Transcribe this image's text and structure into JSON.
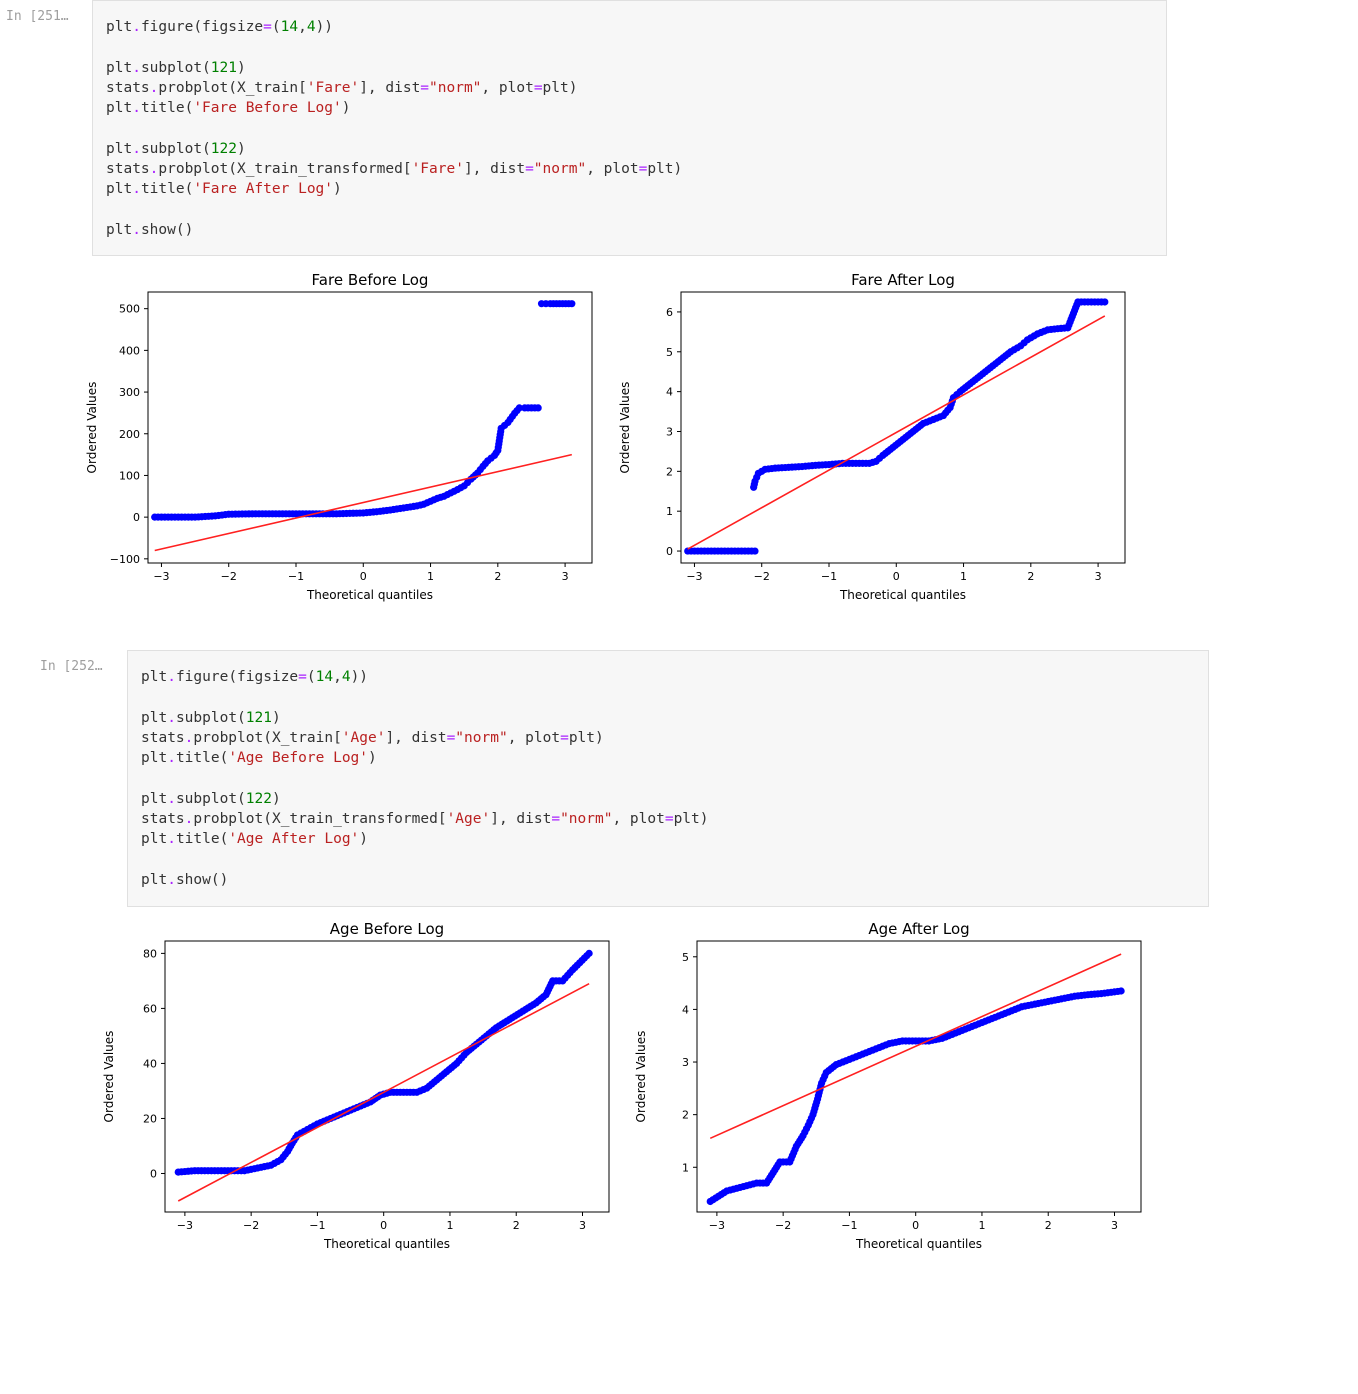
{
  "cells": [
    {
      "prompt": "In [251…",
      "code_lines": [
        [
          [
            "plt",
            "n"
          ],
          [
            ".",
            "o"
          ],
          [
            "figure(figsize",
            "n"
          ],
          [
            "=",
            "o"
          ],
          [
            "(",
            "n"
          ],
          [
            "14",
            "num"
          ],
          [
            ",",
            "n"
          ],
          [
            "4",
            "num"
          ],
          [
            "))",
            "n"
          ]
        ],
        [],
        [
          [
            "plt",
            "n"
          ],
          [
            ".",
            "o"
          ],
          [
            "subplot(",
            "n"
          ],
          [
            "121",
            "num"
          ],
          [
            ")",
            "n"
          ]
        ],
        [
          [
            "stats",
            "n"
          ],
          [
            ".",
            "o"
          ],
          [
            "probplot(X_train[",
            "n"
          ],
          [
            "'Fare'",
            "str"
          ],
          [
            "], dist",
            "n"
          ],
          [
            "=",
            "o"
          ],
          [
            "\"norm\"",
            "str"
          ],
          [
            ", plot",
            "n"
          ],
          [
            "=",
            "o"
          ],
          [
            "plt)",
            "n"
          ]
        ],
        [
          [
            "plt",
            "n"
          ],
          [
            ".",
            "o"
          ],
          [
            "title(",
            "n"
          ],
          [
            "'Fare Before Log'",
            "str"
          ],
          [
            ")",
            "n"
          ]
        ],
        [],
        [
          [
            "plt",
            "n"
          ],
          [
            ".",
            "o"
          ],
          [
            "subplot(",
            "n"
          ],
          [
            "122",
            "num"
          ],
          [
            ")",
            "n"
          ]
        ],
        [
          [
            "stats",
            "n"
          ],
          [
            ".",
            "o"
          ],
          [
            "probplot(X_train_transformed[",
            "n"
          ],
          [
            "'Fare'",
            "str"
          ],
          [
            "], dist",
            "n"
          ],
          [
            "=",
            "o"
          ],
          [
            "\"norm\"",
            "str"
          ],
          [
            ", plot",
            "n"
          ],
          [
            "=",
            "o"
          ],
          [
            "plt)",
            "n"
          ]
        ],
        [
          [
            "plt",
            "n"
          ],
          [
            ".",
            "o"
          ],
          [
            "title(",
            "n"
          ],
          [
            "'Fare After Log'",
            "str"
          ],
          [
            ")",
            "n"
          ]
        ],
        [],
        [
          [
            "plt",
            "n"
          ],
          [
            ".",
            "o"
          ],
          [
            "show()",
            "n"
          ]
        ]
      ]
    },
    {
      "prompt": "In [252…",
      "code_lines": [
        [
          [
            "plt",
            "n"
          ],
          [
            ".",
            "o"
          ],
          [
            "figure(figsize",
            "n"
          ],
          [
            "=",
            "o"
          ],
          [
            "(",
            "n"
          ],
          [
            "14",
            "num"
          ],
          [
            ",",
            "n"
          ],
          [
            "4",
            "num"
          ],
          [
            "))",
            "n"
          ]
        ],
        [],
        [
          [
            "plt",
            "n"
          ],
          [
            ".",
            "o"
          ],
          [
            "subplot(",
            "n"
          ],
          [
            "121",
            "num"
          ],
          [
            ")",
            "n"
          ]
        ],
        [
          [
            "stats",
            "n"
          ],
          [
            ".",
            "o"
          ],
          [
            "probplot(X_train[",
            "n"
          ],
          [
            "'Age'",
            "str"
          ],
          [
            "], dist",
            "n"
          ],
          [
            "=",
            "o"
          ],
          [
            "\"norm\"",
            "str"
          ],
          [
            ", plot",
            "n"
          ],
          [
            "=",
            "o"
          ],
          [
            "plt)",
            "n"
          ]
        ],
        [
          [
            "plt",
            "n"
          ],
          [
            ".",
            "o"
          ],
          [
            "title(",
            "n"
          ],
          [
            "'Age Before Log'",
            "str"
          ],
          [
            ")",
            "n"
          ]
        ],
        [],
        [
          [
            "plt",
            "n"
          ],
          [
            ".",
            "o"
          ],
          [
            "subplot(",
            "n"
          ],
          [
            "122",
            "num"
          ],
          [
            ")",
            "n"
          ]
        ],
        [
          [
            "stats",
            "n"
          ],
          [
            ".",
            "o"
          ],
          [
            "probplot(X_train_transformed[",
            "n"
          ],
          [
            "'Age'",
            "str"
          ],
          [
            "], dist",
            "n"
          ],
          [
            "=",
            "o"
          ],
          [
            "\"norm\"",
            "str"
          ],
          [
            ", plot",
            "n"
          ],
          [
            "=",
            "o"
          ],
          [
            "plt)",
            "n"
          ]
        ],
        [
          [
            "plt",
            "n"
          ],
          [
            ".",
            "o"
          ],
          [
            "title(",
            "n"
          ],
          [
            "'Age After Log'",
            "str"
          ],
          [
            ")",
            "n"
          ]
        ],
        [],
        [
          [
            "plt",
            "n"
          ],
          [
            ".",
            "o"
          ],
          [
            "show()",
            "n"
          ]
        ]
      ]
    }
  ],
  "colors": {
    "points": "#0000ff",
    "fit_line": "#ff2020",
    "prompt": "#9e9e9e",
    "cell_bg": "#f7f7f7"
  },
  "chart_data": [
    {
      "type": "scatter",
      "title": "Fare Before Log",
      "xlabel": "Theoretical quantiles",
      "ylabel": "Ordered Values",
      "xlim": [
        -3.2,
        3.4
      ],
      "ylim": [
        -110,
        540
      ],
      "xticks": [
        -3,
        -2,
        -1,
        0,
        1,
        2,
        3
      ],
      "yticks": [
        -100,
        0,
        100,
        200,
        300,
        400,
        500
      ],
      "quantile_points": [
        [
          -3.1,
          0
        ],
        [
          -2.9,
          0
        ],
        [
          -2.5,
          0
        ],
        [
          -2.2,
          3
        ],
        [
          -2.0,
          7
        ],
        [
          -1.6,
          8
        ],
        [
          -1.2,
          8
        ],
        [
          -0.8,
          8
        ],
        [
          -0.4,
          8
        ],
        [
          0.0,
          10
        ],
        [
          0.2,
          13
        ],
        [
          0.4,
          17
        ],
        [
          0.6,
          22
        ],
        [
          0.8,
          27
        ],
        [
          0.9,
          31
        ],
        [
          1.0,
          38
        ],
        [
          1.1,
          45
        ],
        [
          1.2,
          50
        ],
        [
          1.3,
          58
        ],
        [
          1.4,
          66
        ],
        [
          1.5,
          75
        ],
        [
          1.55,
          83
        ],
        [
          1.6,
          91
        ],
        [
          1.7,
          106
        ],
        [
          1.78,
          122
        ],
        [
          1.85,
          135
        ],
        [
          1.95,
          148
        ],
        [
          2.0,
          160
        ],
        [
          2.05,
          213
        ],
        [
          2.15,
          227
        ],
        [
          2.25,
          249
        ],
        [
          2.32,
          262
        ],
        [
          2.4,
          262
        ],
        [
          2.5,
          262
        ],
        [
          2.6,
          262
        ],
        [
          2.65,
          512
        ],
        [
          2.78,
          512
        ],
        [
          3.1,
          512
        ]
      ],
      "fit_line": [
        [
          -3.1,
          -80
        ],
        [
          3.1,
          150
        ]
      ]
    },
    {
      "type": "scatter",
      "title": "Fare After Log",
      "xlabel": "Theoretical quantiles",
      "ylabel": "Ordered Values",
      "xlim": [
        -3.2,
        3.4
      ],
      "ylim": [
        -0.3,
        6.5
      ],
      "xticks": [
        -3,
        -2,
        -1,
        0,
        1,
        2,
        3
      ],
      "yticks": [
        0,
        1,
        2,
        3,
        4,
        5,
        6
      ],
      "quantile_points": [
        [
          -3.1,
          0
        ],
        [
          -2.85,
          0
        ],
        [
          -2.7,
          0
        ],
        [
          -2.55,
          0
        ],
        [
          -2.4,
          0
        ],
        [
          -2.25,
          0
        ],
        [
          -2.1,
          0
        ],
        [
          -2.12,
          1.6
        ],
        [
          -2.1,
          1.75
        ],
        [
          -2.05,
          1.95
        ],
        [
          -1.95,
          2.05
        ],
        [
          -1.8,
          2.08
        ],
        [
          -1.6,
          2.1
        ],
        [
          -1.4,
          2.12
        ],
        [
          -1.2,
          2.15
        ],
        [
          -1.0,
          2.17
        ],
        [
          -0.8,
          2.2
        ],
        [
          -0.6,
          2.2
        ],
        [
          -0.4,
          2.2
        ],
        [
          -0.3,
          2.25
        ],
        [
          -0.2,
          2.4
        ],
        [
          -0.05,
          2.6
        ],
        [
          0.1,
          2.8
        ],
        [
          0.25,
          3.0
        ],
        [
          0.4,
          3.2
        ],
        [
          0.55,
          3.3
        ],
        [
          0.7,
          3.4
        ],
        [
          0.8,
          3.6
        ],
        [
          0.85,
          3.85
        ],
        [
          0.95,
          4.0
        ],
        [
          1.1,
          4.2
        ],
        [
          1.25,
          4.4
        ],
        [
          1.4,
          4.6
        ],
        [
          1.55,
          4.8
        ],
        [
          1.7,
          5.0
        ],
        [
          1.85,
          5.15
        ],
        [
          1.95,
          5.3
        ],
        [
          2.1,
          5.45
        ],
        [
          2.25,
          5.55
        ],
        [
          2.4,
          5.58
        ],
        [
          2.55,
          5.6
        ],
        [
          2.7,
          6.25
        ],
        [
          2.85,
          6.25
        ],
        [
          3.1,
          6.25
        ]
      ],
      "fit_line": [
        [
          -3.1,
          0.05
        ],
        [
          3.1,
          5.9
        ]
      ]
    },
    {
      "type": "scatter",
      "title": "Age Before Log",
      "xlabel": "Theoretical quantiles",
      "ylabel": "Ordered Values",
      "xlim": [
        -3.3,
        3.4
      ],
      "ylim": [
        -14,
        84.5
      ],
      "xticks": [
        -3,
        -2,
        -1,
        0,
        1,
        2,
        3
      ],
      "yticks": [
        0,
        20,
        40,
        60,
        80
      ],
      "quantile_points": [
        [
          -3.1,
          0.5
        ],
        [
          -2.85,
          1
        ],
        [
          -2.7,
          1
        ],
        [
          -2.5,
          1
        ],
        [
          -2.3,
          1
        ],
        [
          -2.1,
          1
        ],
        [
          -1.9,
          2
        ],
        [
          -1.7,
          3
        ],
        [
          -1.55,
          5
        ],
        [
          -1.45,
          8
        ],
        [
          -1.38,
          11
        ],
        [
          -1.3,
          14
        ],
        [
          -1.15,
          16
        ],
        [
          -1.0,
          18
        ],
        [
          -0.8,
          20
        ],
        [
          -0.6,
          22
        ],
        [
          -0.4,
          24
        ],
        [
          -0.2,
          26
        ],
        [
          -0.05,
          28.5
        ],
        [
          0.1,
          29.5
        ],
        [
          0.3,
          29.5
        ],
        [
          0.5,
          29.5
        ],
        [
          0.65,
          31
        ],
        [
          0.8,
          34
        ],
        [
          0.95,
          37
        ],
        [
          1.1,
          40
        ],
        [
          1.25,
          44
        ],
        [
          1.4,
          47
        ],
        [
          1.55,
          50
        ],
        [
          1.7,
          53
        ],
        [
          1.9,
          56
        ],
        [
          2.1,
          59
        ],
        [
          2.3,
          62
        ],
        [
          2.45,
          65
        ],
        [
          2.55,
          70
        ],
        [
          2.7,
          70
        ],
        [
          2.85,
          74
        ],
        [
          3.1,
          80
        ]
      ],
      "fit_line": [
        [
          -3.1,
          -10
        ],
        [
          3.1,
          69
        ]
      ]
    },
    {
      "type": "scatter",
      "title": "Age After Log",
      "xlabel": "Theoretical quantiles",
      "ylabel": "Ordered Values",
      "xlim": [
        -3.3,
        3.4
      ],
      "ylim": [
        0.15,
        5.3
      ],
      "xticks": [
        -3,
        -2,
        -1,
        0,
        1,
        2,
        3
      ],
      "yticks": [
        1,
        2,
        3,
        4,
        5
      ],
      "quantile_points": [
        [
          -3.1,
          0.35
        ],
        [
          -2.85,
          0.55
        ],
        [
          -2.7,
          0.6
        ],
        [
          -2.55,
          0.65
        ],
        [
          -2.4,
          0.7
        ],
        [
          -2.25,
          0.7
        ],
        [
          -2.05,
          1.1
        ],
        [
          -1.9,
          1.1
        ],
        [
          -1.8,
          1.4
        ],
        [
          -1.7,
          1.6
        ],
        [
          -1.62,
          1.8
        ],
        [
          -1.55,
          2.0
        ],
        [
          -1.48,
          2.3
        ],
        [
          -1.42,
          2.6
        ],
        [
          -1.35,
          2.8
        ],
        [
          -1.2,
          2.95
        ],
        [
          -1.0,
          3.05
        ],
        [
          -0.8,
          3.15
        ],
        [
          -0.6,
          3.25
        ],
        [
          -0.4,
          3.35
        ],
        [
          -0.2,
          3.4
        ],
        [
          0.0,
          3.4
        ],
        [
          0.2,
          3.4
        ],
        [
          0.4,
          3.45
        ],
        [
          0.6,
          3.55
        ],
        [
          0.8,
          3.65
        ],
        [
          1.0,
          3.75
        ],
        [
          1.2,
          3.85
        ],
        [
          1.4,
          3.95
        ],
        [
          1.6,
          4.05
        ],
        [
          1.8,
          4.1
        ],
        [
          2.0,
          4.15
        ],
        [
          2.2,
          4.2
        ],
        [
          2.4,
          4.25
        ],
        [
          2.6,
          4.28
        ],
        [
          2.8,
          4.3
        ],
        [
          3.1,
          4.35
        ]
      ],
      "fit_line": [
        [
          -3.1,
          1.55
        ],
        [
          3.1,
          5.05
        ]
      ]
    }
  ]
}
